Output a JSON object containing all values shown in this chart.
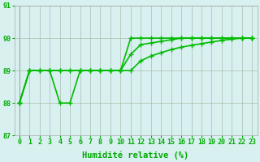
{
  "title": "",
  "xlabel": "Humidité relative (%)",
  "ylabel": "",
  "bg_color": "#d8f0f0",
  "line_color": "#00bb00",
  "grid_color": "#aabbaa",
  "ylim": [
    87,
    91
  ],
  "xlim": [
    -0.5,
    23.5
  ],
  "yticks": [
    87,
    88,
    89,
    90,
    91
  ],
  "xticks": [
    0,
    1,
    2,
    3,
    4,
    5,
    6,
    7,
    8,
    9,
    10,
    11,
    12,
    13,
    14,
    15,
    16,
    17,
    18,
    19,
    20,
    21,
    22,
    23
  ],
  "line1": [
    88,
    89,
    89,
    89,
    88,
    88,
    89,
    89,
    89,
    89,
    89,
    90,
    90,
    90,
    90,
    90,
    90,
    90,
    90,
    90,
    90,
    90,
    90,
    90
  ],
  "line2": [
    88,
    89,
    89,
    89,
    89,
    89,
    89,
    89,
    89,
    89,
    89,
    89.5,
    89.8,
    89.85,
    89.9,
    89.95,
    90,
    90,
    90,
    90,
    90,
    90,
    90,
    90
  ],
  "line3": [
    88,
    89,
    89,
    89,
    89,
    89,
    89,
    89,
    89,
    89,
    89,
    89,
    89.3,
    89.45,
    89.55,
    89.65,
    89.72,
    89.78,
    89.83,
    89.88,
    89.93,
    89.97,
    90,
    90
  ],
  "font_color": "#00aa00",
  "marker": "+",
  "markersize": 4,
  "linewidth": 1.2,
  "tick_fontsize": 6,
  "label_fontsize": 7.5
}
